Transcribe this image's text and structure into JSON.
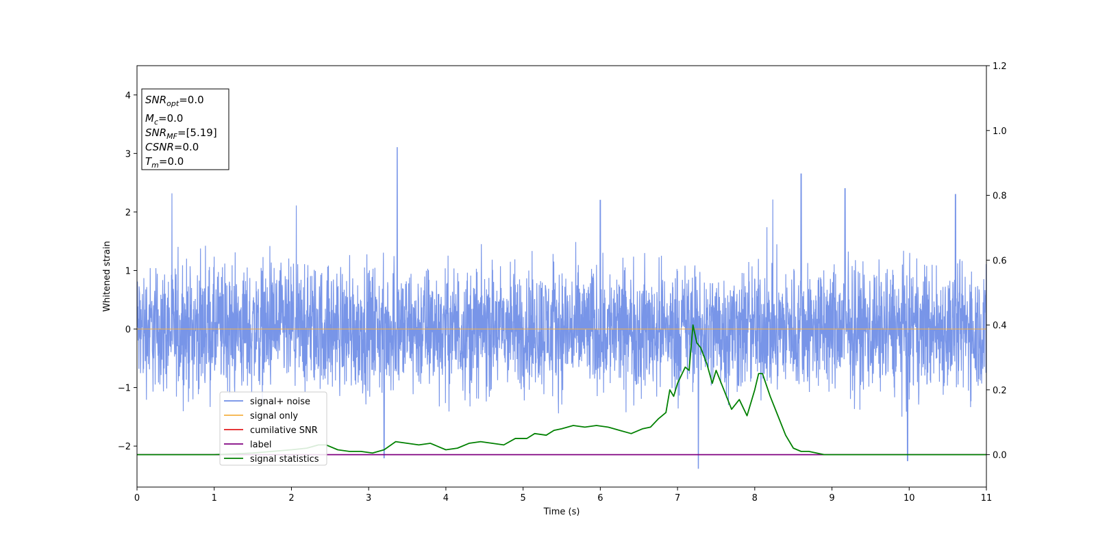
{
  "chart_data": {
    "type": "line",
    "xlabel": "Time (s)",
    "ylabel": "Whitened strain",
    "xlim": [
      0,
      11
    ],
    "ylim": [
      -2.7,
      4.5
    ],
    "y2lim": [
      -0.1,
      1.2
    ],
    "xticks": [
      "0",
      "1",
      "2",
      "3",
      "4",
      "5",
      "6",
      "7",
      "8",
      "9",
      "10",
      "11"
    ],
    "yticks": [
      "−2",
      "−1",
      "0",
      "1",
      "2",
      "3",
      "4"
    ],
    "y2ticks": [
      "0.0",
      "0.2",
      "0.4",
      "0.6",
      "0.8",
      "1.0",
      "1.2"
    ],
    "grid": false,
    "legend_position": "lower-left",
    "annotation": [
      {
        "base": "SNR",
        "sub": "opt",
        "value": "=0.0"
      },
      {
        "base": "M",
        "sub": "c",
        "value": "=0.0"
      },
      {
        "base": "SNR",
        "sub": "MF",
        "value": "=[5.19]"
      },
      {
        "base": "CSNR",
        "sub": "",
        "value": "=0.0"
      },
      {
        "base": "T",
        "sub": "m",
        "value": "=0.0"
      }
    ],
    "series": [
      {
        "name": "signal+ noise",
        "axis": "left",
        "color": "#6d8ce6",
        "description_values": {
          "noise_band_min": -1.5,
          "noise_band_max": 1.5,
          "peaks": [
            [
              3.37,
              3.1
            ],
            [
              8.6,
              2.65
            ],
            [
              9.17,
              2.4
            ],
            [
              10.6,
              2.3
            ],
            [
              6.0,
              2.2
            ],
            [
              7.27,
              -2.38
            ],
            [
              3.2,
              -2.2
            ],
            [
              9.98,
              -2.25
            ]
          ]
        }
      },
      {
        "name": "signal only",
        "axis": "left",
        "color": "#f5b041",
        "x": [
          0,
          11
        ],
        "y": [
          0,
          0
        ]
      },
      {
        "name": "cumilative SNR",
        "axis": "left",
        "color": "#e31a1c",
        "x": [],
        "y": []
      },
      {
        "name": "label",
        "axis": "right",
        "color": "#800080",
        "x": [
          0,
          11
        ],
        "y": [
          0,
          0
        ]
      },
      {
        "name": "signal statistics",
        "axis": "right",
        "color": "#008000",
        "x": [
          0,
          0.5,
          1.0,
          1.5,
          2.0,
          2.2,
          2.35,
          2.45,
          2.6,
          2.75,
          2.9,
          3.05,
          3.2,
          3.35,
          3.5,
          3.65,
          3.8,
          3.9,
          4.0,
          4.15,
          4.3,
          4.45,
          4.6,
          4.75,
          4.9,
          5.05,
          5.15,
          5.3,
          5.4,
          5.5,
          5.65,
          5.8,
          5.95,
          6.1,
          6.25,
          6.4,
          6.55,
          6.65,
          6.75,
          6.85,
          6.9,
          6.95,
          7.0,
          7.1,
          7.15,
          7.2,
          7.25,
          7.3,
          7.38,
          7.45,
          7.5,
          7.6,
          7.7,
          7.8,
          7.9,
          8.0,
          8.05,
          8.1,
          8.2,
          8.3,
          8.4,
          8.5,
          8.6,
          8.7,
          8.8,
          8.9,
          9.0,
          9.2,
          9.5,
          9.8,
          10.0,
          10.3,
          10.6,
          11.0
        ],
        "y": [
          0.0,
          0.0,
          0.0,
          0.005,
          0.015,
          0.02,
          0.03,
          0.03,
          0.015,
          0.01,
          0.01,
          0.005,
          0.015,
          0.04,
          0.035,
          0.03,
          0.035,
          0.025,
          0.015,
          0.02,
          0.035,
          0.04,
          0.035,
          0.03,
          0.05,
          0.05,
          0.065,
          0.06,
          0.075,
          0.08,
          0.09,
          0.085,
          0.09,
          0.085,
          0.075,
          0.065,
          0.08,
          0.085,
          0.11,
          0.13,
          0.2,
          0.18,
          0.22,
          0.27,
          0.26,
          0.4,
          0.345,
          0.33,
          0.28,
          0.22,
          0.26,
          0.2,
          0.14,
          0.17,
          0.12,
          0.2,
          0.25,
          0.25,
          0.18,
          0.12,
          0.06,
          0.02,
          0.01,
          0.01,
          0.005,
          0.0,
          0.0,
          0.0,
          0.0,
          0.0,
          0.0,
          0.0,
          0.0,
          0.0
        ]
      }
    ]
  }
}
